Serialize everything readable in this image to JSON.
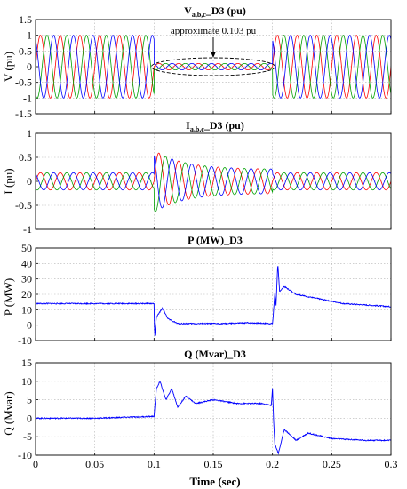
{
  "chart_data": [
    {
      "type": "line",
      "title": "V",
      "title_sub": "a,b,c",
      "title_rest": "_D3 (pu)",
      "ylabel": "V (pu)",
      "xlim": [
        0,
        0.3
      ],
      "ylim": [
        -1.5,
        1.5
      ],
      "yticks": [
        "1.5",
        "1",
        "0.5",
        "0",
        "-0.5",
        "-1",
        "-1.5"
      ],
      "annotation": "approximate 0.103 pu",
      "series": [
        {
          "color": "#ff0000",
          "phase_deg": 0
        },
        {
          "color": "#00a000",
          "phase_deg": -120
        },
        {
          "color": "#0000ff",
          "phase_deg": 120
        }
      ],
      "segments": [
        {
          "t": [
            0,
            0.1
          ],
          "amplitude": 1.0
        },
        {
          "t": [
            0.1,
            0.2
          ],
          "amplitude": 0.103
        },
        {
          "t": [
            0.2,
            0.3
          ],
          "amplitude": 1.0
        }
      ],
      "frequency_hz": 60
    },
    {
      "type": "line",
      "title": "I",
      "title_sub": "a,b,c",
      "title_rest": "_D3 (pu)",
      "ylabel": "I (pu)",
      "xlim": [
        0,
        0.3
      ],
      "ylim": [
        -1,
        1
      ],
      "yticks": [
        "1",
        "0.5",
        "0",
        "-0.5",
        "-1"
      ],
      "series": [
        {
          "color": "#ff0000",
          "phase_deg": 0
        },
        {
          "color": "#00a000",
          "phase_deg": -120
        },
        {
          "color": "#0000ff",
          "phase_deg": 120
        }
      ],
      "segments": [
        {
          "t": [
            0,
            0.1
          ],
          "amplitude": 0.18
        },
        {
          "t": [
            0.1,
            0.2
          ],
          "amplitude_start": 0.65,
          "amplitude_end": 0.25
        },
        {
          "t": [
            0.2,
            0.3
          ],
          "amplitude": 0.18
        }
      ],
      "frequency_hz": 60
    },
    {
      "type": "line",
      "title": "P (MW)_D3",
      "ylabel": "P (MW)",
      "xlim": [
        0,
        0.3
      ],
      "ylim": [
        -10,
        50
      ],
      "yticks": [
        "50",
        "40",
        "30",
        "20",
        "10",
        "0",
        "-10"
      ],
      "series": [
        {
          "color": "#0000ff"
        }
      ],
      "points": [
        [
          0,
          14
        ],
        [
          0.05,
          14
        ],
        [
          0.098,
          14
        ],
        [
          0.1,
          14
        ],
        [
          0.1005,
          -8
        ],
        [
          0.102,
          5
        ],
        [
          0.107,
          11
        ],
        [
          0.112,
          4
        ],
        [
          0.12,
          1
        ],
        [
          0.14,
          1
        ],
        [
          0.16,
          1
        ],
        [
          0.18,
          1.5
        ],
        [
          0.199,
          1
        ],
        [
          0.2,
          1
        ],
        [
          0.2005,
          5
        ],
        [
          0.202,
          21
        ],
        [
          0.203,
          13
        ],
        [
          0.2045,
          40
        ],
        [
          0.206,
          22
        ],
        [
          0.21,
          25
        ],
        [
          0.22,
          20
        ],
        [
          0.24,
          17
        ],
        [
          0.26,
          14
        ],
        [
          0.28,
          13
        ],
        [
          0.3,
          12
        ]
      ]
    },
    {
      "type": "line",
      "title": "Q (Mvar)_D3",
      "ylabel": "Q (Mvar)",
      "xlabel": "Time (sec)",
      "xlim": [
        0,
        0.3
      ],
      "ylim": [
        -10,
        15
      ],
      "yticks": [
        "15",
        "10",
        "5",
        "0",
        "-5",
        "-10"
      ],
      "xticks": [
        "0",
        "0.05",
        "0.1",
        "0.15",
        "0.2",
        "0.25",
        "0.3"
      ],
      "series": [
        {
          "color": "#0000ff"
        }
      ],
      "points": [
        [
          0,
          0
        ],
        [
          0.05,
          0
        ],
        [
          0.099,
          0.5
        ],
        [
          0.1,
          0.5
        ],
        [
          0.102,
          8
        ],
        [
          0.105,
          10
        ],
        [
          0.11,
          5
        ],
        [
          0.115,
          8
        ],
        [
          0.12,
          3
        ],
        [
          0.127,
          6
        ],
        [
          0.135,
          4
        ],
        [
          0.15,
          5
        ],
        [
          0.17,
          4
        ],
        [
          0.19,
          4
        ],
        [
          0.199,
          3.5
        ],
        [
          0.2,
          8
        ],
        [
          0.201,
          -1
        ],
        [
          0.202,
          -7
        ],
        [
          0.205,
          -9.5
        ],
        [
          0.21,
          -3
        ],
        [
          0.22,
          -6
        ],
        [
          0.23,
          -4
        ],
        [
          0.25,
          -5.5
        ],
        [
          0.28,
          -6
        ],
        [
          0.3,
          -6
        ]
      ]
    }
  ]
}
